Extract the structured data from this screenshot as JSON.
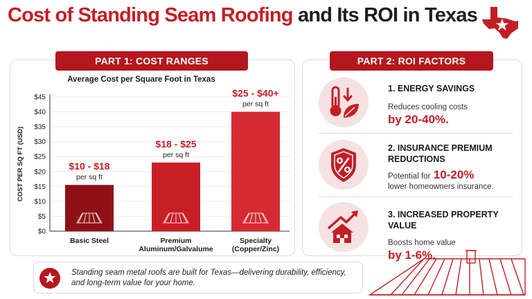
{
  "header": {
    "title_red": "Cost of Standing Seam Roofing",
    "title_dark": "and Its ROI in Texas"
  },
  "part1": {
    "label": "PART 1: COST RANGES"
  },
  "part2": {
    "label": "PART 2: ROI FACTORS"
  },
  "chart_data": {
    "type": "bar",
    "title": "Average Cost per Square Foot in Texas",
    "ylabel": "COST PER SQ FT (USD)",
    "xlabel": "",
    "ylim": [
      0,
      45
    ],
    "yticks": [
      "$0",
      "$5",
      "$10",
      "$15",
      "$20",
      "$25",
      "$30",
      "$35",
      "$40",
      "$45"
    ],
    "categories": [
      [
        "Basic Steel"
      ],
      [
        "Premium",
        "Aluminum/Galvalume"
      ],
      [
        "Specialty",
        "(Copper/Zinc)"
      ]
    ],
    "values": [
      15.5,
      23,
      40
    ],
    "range_labels": [
      "$10 - $18",
      "$18 - $25",
      "$25 - $40+"
    ],
    "unit_label": "per sq ft",
    "bar_colors": [
      "#8f1117",
      "#c81f27",
      "#d42a30"
    ]
  },
  "roi": [
    {
      "heading": "1. ENERGY SAVINGS",
      "desc": "Reduces cooling costs",
      "highlight": "by 20-40%."
    },
    {
      "heading": "2. INSURANCE PREMIUM",
      "heading2": "REDUCTIONS",
      "desc": "Potential for",
      "highlight": "10-20%",
      "desc2": "lower homeowners insurance."
    },
    {
      "heading": "3. INCREASED PROPERTY VALUE",
      "desc": "Boosts home value",
      "highlight": "by 1-6%."
    }
  ],
  "footer": {
    "line1": "Standing seam metal roofs are built for Texas—delivering durability, efficiency,",
    "line2": "and long-term value for your home."
  },
  "icons": {
    "texas": "texas-state-star-icon",
    "roi1": "thermometer-leaf-icon",
    "roi2": "shield-percent-icon",
    "roi3": "house-growth-arrow-icon",
    "footer": "star-icon",
    "roof": "metal-roof-icon"
  },
  "colors": {
    "accent": "#c41e25",
    "ribbon": "#b5171e",
    "soft": "#f6e2e2"
  }
}
